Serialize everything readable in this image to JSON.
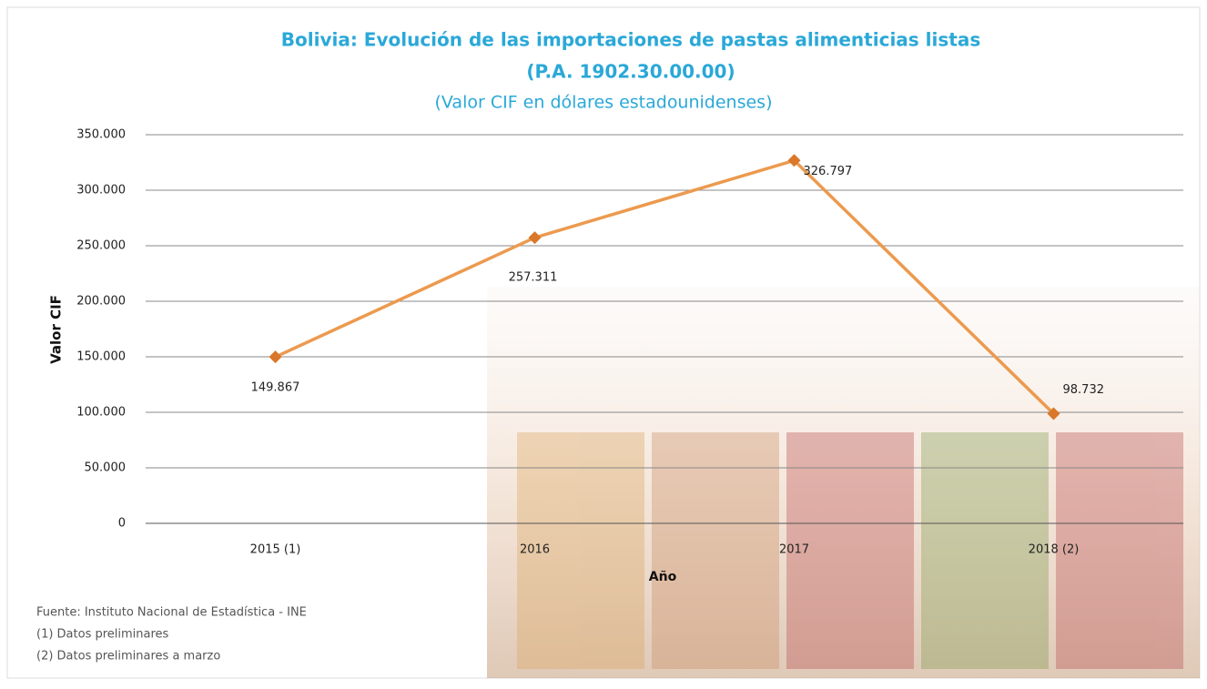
{
  "chart_data": {
    "type": "line",
    "title": "Bolivia: Evolución de las importaciones de pastas alimenticias listas",
    "subtitle": "(P.A. 1902.30.00.00)",
    "subtitle2": "(Valor CIF en dólares estadounidenses)",
    "y_label": "Valor CIF",
    "x_label": "Año",
    "categories": [
      "2015 (1)",
      "2016",
      "2017",
      "2018 (2)"
    ],
    "series": [
      {
        "name": "Valor CIF",
        "color": "#ec9a4f",
        "marker_color": "#d9772a",
        "values": [
          149867,
          257311,
          326797,
          98732
        ],
        "value_labels": [
          "149.867",
          "257.311",
          "326.797",
          "98.732"
        ]
      }
    ],
    "ylim": [
      0,
      350000
    ],
    "yticks": [
      0,
      {
        "value": 50000,
        "label": "50.000"
      },
      {
        "value": 100000,
        "label": "100.000"
      },
      {
        "value": 150000,
        "label": "150.000"
      },
      {
        "value": 200000,
        "label": "200.000"
      },
      {
        "value": 250000,
        "label": "250.000"
      },
      {
        "value": 300000,
        "label": "300.000"
      },
      {
        "value": 350000,
        "label": "350.000"
      }
    ],
    "grid": true,
    "notes": [
      "Fuente: Instituto Nacional de Estadística - INE",
      "(1) Datos preliminares",
      "(2) Datos preliminares a marzo"
    ]
  }
}
